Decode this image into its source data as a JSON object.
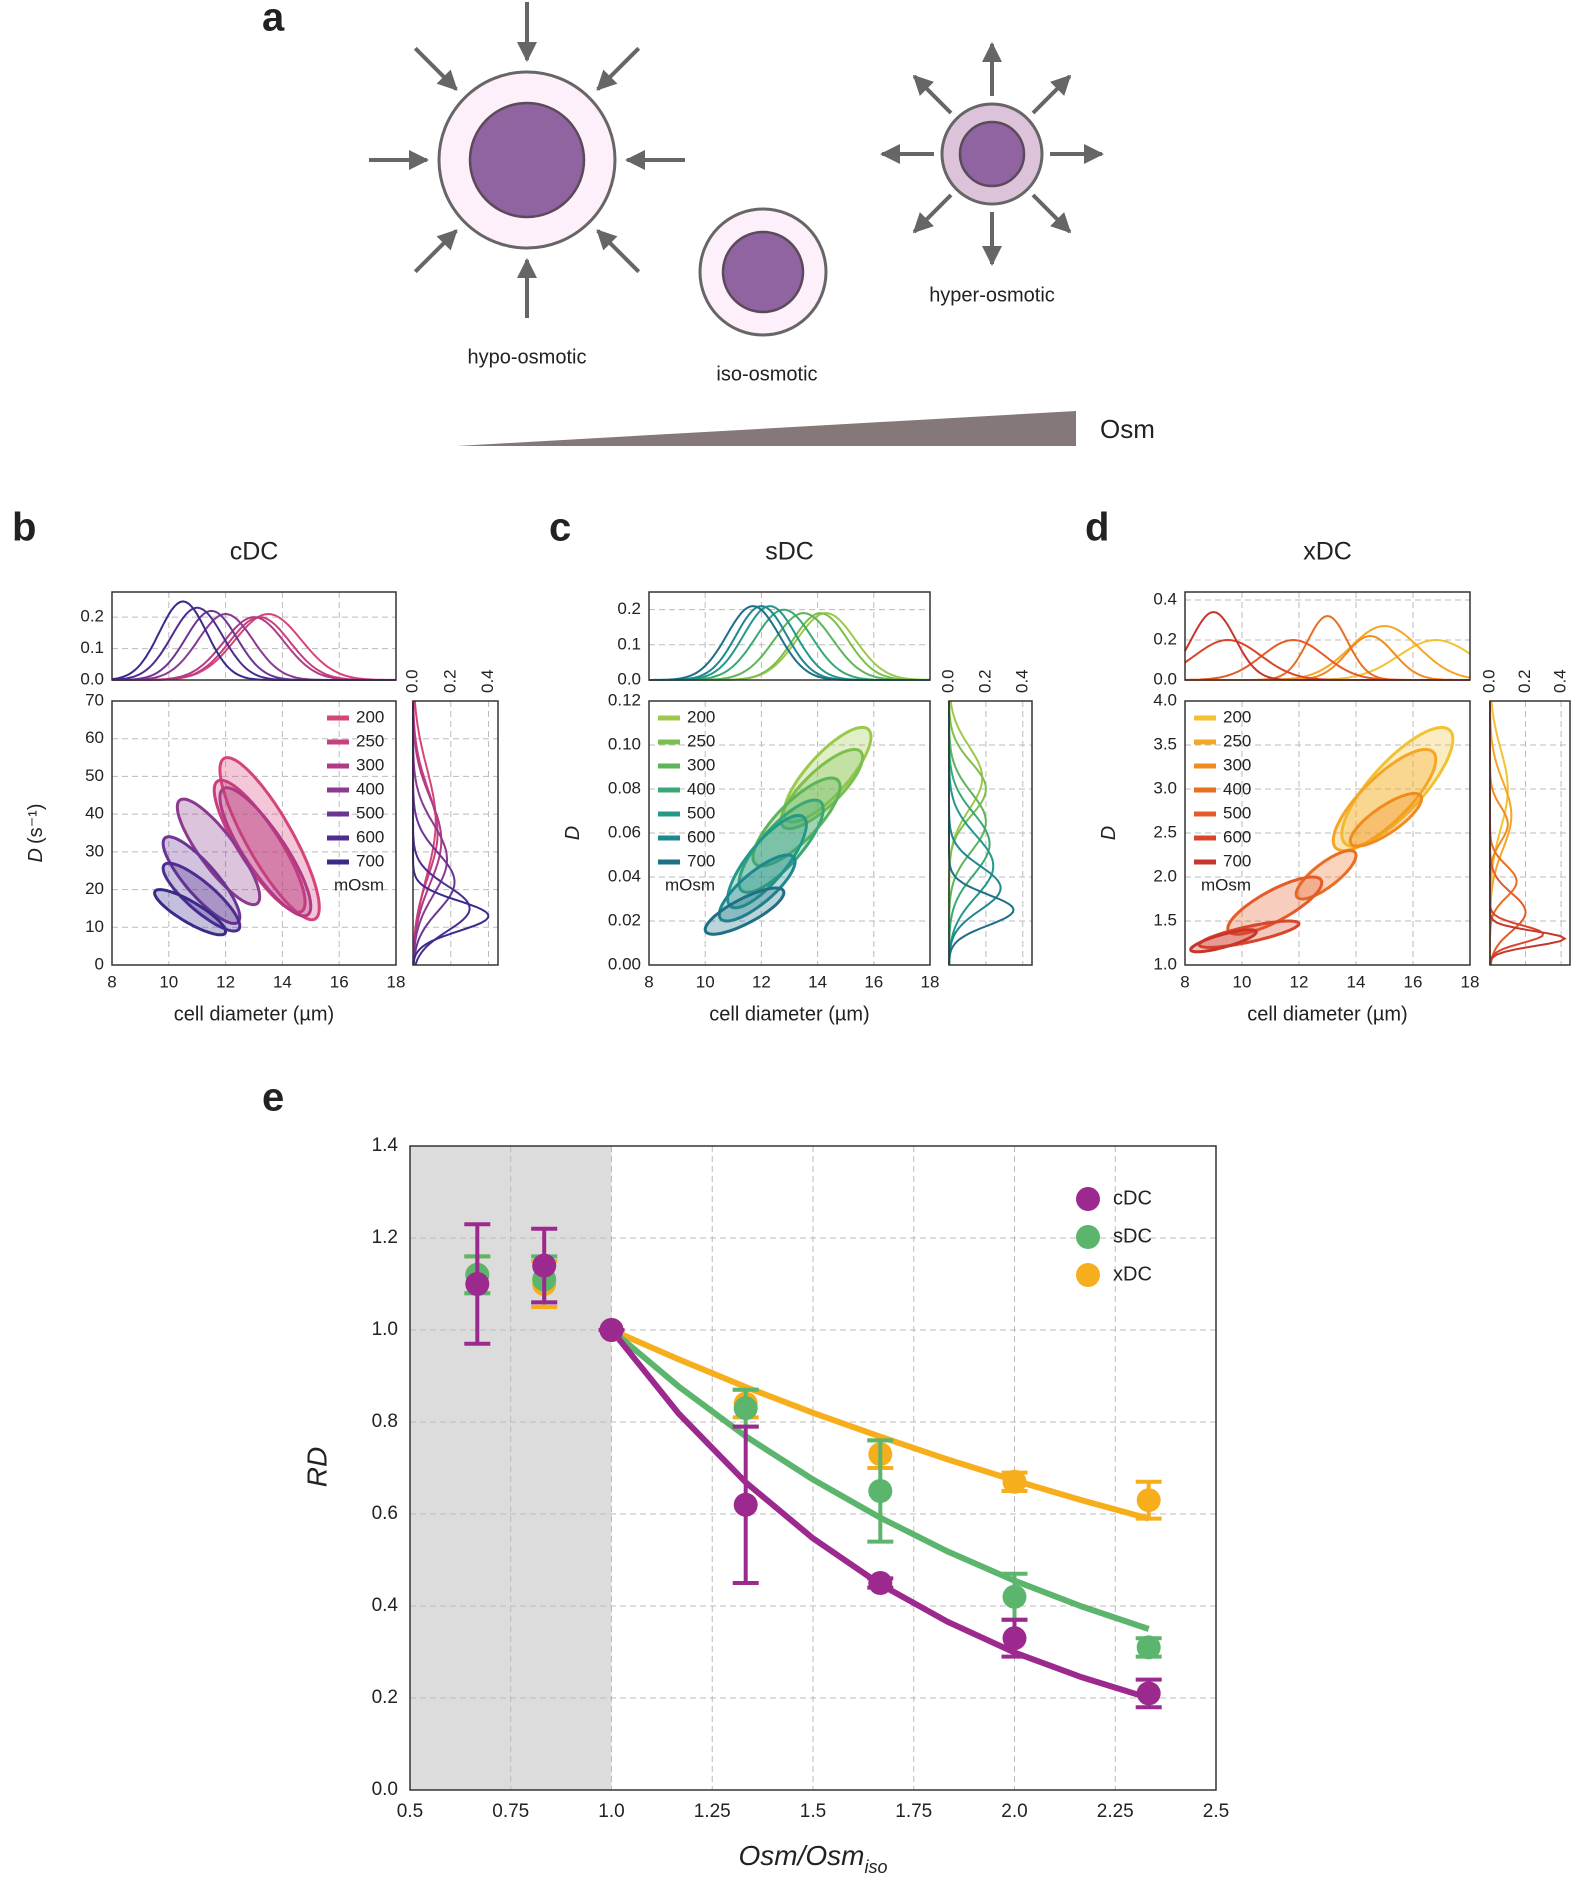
{
  "panel_a": {
    "label": "a",
    "cells": [
      "hypo-osmotic",
      "iso-osmotic",
      "hyper-osmotic"
    ],
    "gradient_label": "Osm"
  },
  "chart_data": [
    {
      "type": "contour",
      "panel_label": "b",
      "title": "cDC",
      "xlabel": "cell diameter (µm)",
      "ylabel": "D",
      "ylabel_unit": "(s⁻¹)",
      "legend_title": "mOsm",
      "legend": "upper right",
      "xlim": [
        8,
        18
      ],
      "xticks": [
        8,
        10,
        12,
        14,
        16,
        18
      ],
      "ylim": [
        0,
        70
      ],
      "yticks": [
        0,
        10,
        20,
        30,
        40,
        50,
        60,
        70
      ],
      "top_ylim": [
        0,
        0.28
      ],
      "top_yticks": [
        {
          "value": 0,
          "label": "0.0"
        },
        0.1,
        0.2
      ],
      "right_xlim": [
        0,
        0.45
      ],
      "right_xticks": [
        {
          "value": 0,
          "label": "0.0"
        },
        0.2,
        0.4
      ],
      "grid": true,
      "correlation": -0.85,
      "series": [
        {
          "name": "200",
          "color": "#d6447a",
          "x_range": [
            11.8,
            15.3
          ],
          "y_range": [
            12,
            55
          ],
          "x_density": [
            13.5,
            0.21
          ],
          "y_density": [
            38,
            0.12
          ]
        },
        {
          "name": "250",
          "color": "#c93e7d",
          "x_range": [
            11.6,
            14.8
          ],
          "y_range": [
            14,
            49
          ],
          "x_density": [
            13.2,
            0.2
          ],
          "y_density": [
            35,
            0.13
          ]
        },
        {
          "name": "300",
          "color": "#b03a85",
          "x_range": [
            11.8,
            15
          ],
          "y_range": [
            13,
            47
          ],
          "x_density": [
            13,
            0.2
          ],
          "y_density": [
            33,
            0.15
          ]
        },
        {
          "name": "400",
          "color": "#8a3a8f",
          "x_range": [
            10.3,
            13.2
          ],
          "y_range": [
            16,
            44
          ],
          "x_density": [
            12,
            0.21
          ],
          "y_density": [
            28,
            0.18
          ]
        },
        {
          "name": "500",
          "color": "#6a3594",
          "x_range": [
            9.8,
            12.5
          ],
          "y_range": [
            11,
            34
          ],
          "x_density": [
            11.5,
            0.22
          ],
          "y_density": [
            22,
            0.22
          ]
        },
        {
          "name": "600",
          "color": "#4d2d8f",
          "x_range": [
            9.8,
            12.5
          ],
          "y_range": [
            9,
            27
          ],
          "x_density": [
            11,
            0.23
          ],
          "y_density": [
            15,
            0.3
          ]
        },
        {
          "name": "700",
          "color": "#3a2a8a",
          "x_range": [
            9.5,
            12
          ],
          "y_range": [
            8,
            20
          ],
          "x_density": [
            10.5,
            0.25
          ],
          "y_density": [
            13,
            0.4
          ]
        }
      ]
    },
    {
      "type": "contour",
      "panel_label": "c",
      "title": "sDC",
      "xlabel": "cell diameter (µm)",
      "ylabel": "D",
      "legend_title": "mOsm",
      "legend": "upper left",
      "xlim": [
        8,
        18
      ],
      "xticks": [
        8,
        10,
        12,
        14,
        16,
        18
      ],
      "ylim": [
        0,
        0.12
      ],
      "yticks": [
        {
          "value": 0,
          "label": "0.00"
        },
        0.02,
        0.04,
        0.06,
        0.08,
        {
          "value": 0.1,
          "label": "0.10"
        },
        0.12
      ],
      "top_ylim": [
        0,
        0.25
      ],
      "top_yticks": [
        {
          "value": 0,
          "label": "0.0"
        },
        0.1,
        0.2
      ],
      "right_xlim": [
        0,
        0.45
      ],
      "right_xticks": [
        {
          "value": 0,
          "label": "0.0"
        },
        0.2,
        0.4
      ],
      "grid": true,
      "correlation": 0.8,
      "series": [
        {
          "name": "200",
          "color": "#9cc94a",
          "x_range": [
            12.8,
            15.9
          ],
          "y_range": [
            0.065,
            0.108
          ],
          "x_density": [
            14.3,
            0.19
          ],
          "y_density": [
            0.085,
            0.18
          ]
        },
        {
          "name": "250",
          "color": "#7cbf4e",
          "x_range": [
            12.7,
            15.6
          ],
          "y_range": [
            0.062,
            0.098
          ],
          "x_density": [
            14.1,
            0.19
          ],
          "y_density": [
            0.08,
            0.2
          ]
        },
        {
          "name": "300",
          "color": "#5db45b",
          "x_range": [
            11.7,
            14.8
          ],
          "y_range": [
            0.045,
            0.085
          ],
          "x_density": [
            13.5,
            0.19
          ],
          "y_density": [
            0.065,
            0.2
          ]
        },
        {
          "name": "400",
          "color": "#3aa874",
          "x_range": [
            11.2,
            14.2
          ],
          "y_range": [
            0.033,
            0.075
          ],
          "x_density": [
            12.8,
            0.2
          ],
          "y_density": [
            0.055,
            0.22
          ]
        },
        {
          "name": "500",
          "color": "#23998a",
          "x_range": [
            10.8,
            13.6
          ],
          "y_range": [
            0.026,
            0.068
          ],
          "x_density": [
            12.3,
            0.21
          ],
          "y_density": [
            0.045,
            0.24
          ]
        },
        {
          "name": "600",
          "color": "#1f8790",
          "x_range": [
            10.5,
            13.2
          ],
          "y_range": [
            0.02,
            0.05
          ],
          "x_density": [
            12,
            0.21
          ],
          "y_density": [
            0.035,
            0.28
          ]
        },
        {
          "name": "700",
          "color": "#1f6f85",
          "x_range": [
            10,
            12.8
          ],
          "y_range": [
            0.014,
            0.035
          ],
          "x_density": [
            11.7,
            0.21
          ],
          "y_density": [
            0.025,
            0.35
          ]
        }
      ]
    },
    {
      "type": "contour",
      "panel_label": "d",
      "title": "xDC",
      "xlabel": "cell diameter (µm)",
      "ylabel": "D",
      "legend_title": "mOsm",
      "legend": "upper left",
      "xlim": [
        8,
        18
      ],
      "xticks": [
        8,
        10,
        12,
        14,
        16,
        18
      ],
      "ylim": [
        1,
        4
      ],
      "yticks": [
        {
          "value": 1,
          "label": "1.0"
        },
        1.5,
        {
          "value": 2,
          "label": "2.0"
        },
        2.5,
        {
          "value": 3,
          "label": "3.0"
        },
        3.5,
        {
          "value": 4,
          "label": "4.0"
        }
      ],
      "top_ylim": [
        0,
        0.44
      ],
      "top_yticks": [
        {
          "value": 0,
          "label": "0.0"
        },
        0.2,
        0.4
      ],
      "right_xlim": [
        0,
        0.45
      ],
      "right_xticks": [
        {
          "value": 0,
          "label": "0.0"
        },
        0.2,
        0.4
      ],
      "grid": true,
      "correlation": 0.8,
      "series": [
        {
          "name": "200",
          "color": "#f2c233",
          "x_range": [
            13.5,
            17.4
          ],
          "y_range": [
            2.35,
            3.7
          ],
          "x_density": [
            16.8,
            0.2
          ],
          "y_density": [
            3,
            0.1
          ]
        },
        {
          "name": "250",
          "color": "#f5a623",
          "x_range": [
            13.2,
            16.8
          ],
          "y_range": [
            2.3,
            3.45
          ],
          "x_density": [
            15,
            0.27
          ],
          "y_density": [
            2.7,
            0.12
          ]
        },
        {
          "name": "300",
          "color": "#f08c1e",
          "x_range": [
            13.8,
            16.3
          ],
          "y_range": [
            2.35,
            2.95
          ],
          "x_density": [
            14.5,
            0.22
          ],
          "y_density": [
            2.6,
            0.1
          ]
        },
        {
          "name": "400",
          "color": "#ea6e21",
          "x_range": [
            11.9,
            14
          ],
          "y_range": [
            1.75,
            2.3
          ],
          "x_density": [
            13,
            0.32
          ],
          "y_density": [
            1.95,
            0.15
          ]
        },
        {
          "name": "500",
          "color": "#e55a27",
          "x_range": [
            9.5,
            12.8
          ],
          "y_range": [
            1.35,
            2
          ],
          "x_density": [
            11.8,
            0.2
          ],
          "y_density": [
            1.6,
            0.2
          ]
        },
        {
          "name": "600",
          "color": "#d9452a",
          "x_range": [
            8.5,
            12
          ],
          "y_range": [
            1.2,
            1.5
          ],
          "x_density": [
            9.5,
            0.2
          ],
          "y_density": [
            1.35,
            0.3
          ]
        },
        {
          "name": "700",
          "color": "#c8352b",
          "x_range": [
            8.2,
            10.5
          ],
          "y_range": [
            1.15,
            1.4
          ],
          "x_density": [
            9,
            0.34
          ],
          "y_density": [
            1.3,
            0.42
          ]
        }
      ]
    },
    {
      "type": "scatter",
      "panel_label": "e",
      "xlabel": "Osm/Osm",
      "xlabel_sub": "iso",
      "ylabel": "RD",
      "legend": "upper right",
      "grid": true,
      "shade": [
        0.5,
        1
      ],
      "x": [
        0.667,
        0.833,
        1,
        1.333,
        1.667,
        2,
        2.333
      ],
      "xlim": [
        0.5,
        2.5
      ],
      "xticks": [
        0.5,
        0.75,
        {
          "value": 1,
          "label": "1.0"
        },
        1.25,
        1.5,
        1.75,
        {
          "value": 2,
          "label": "2.0"
        },
        2.25,
        2.5
      ],
      "ylim": [
        0,
        1.4
      ],
      "yticks": [
        {
          "value": 0,
          "label": "0.0"
        },
        0.2,
        0.4,
        0.6,
        0.8,
        {
          "value": 1,
          "label": "1.0"
        },
        1.2,
        1.4
      ],
      "series": [
        {
          "name": "cDC",
          "color": "#9c2a8e",
          "values": [
            1.1,
            1.14,
            1,
            0.62,
            0.45,
            0.33,
            0.21
          ],
          "errors": [
            0.13,
            0.08,
            0,
            0.17,
            0.01,
            0.04,
            0.03
          ],
          "fit_x": [
            1,
            1.167,
            1.333,
            1.5,
            1.667,
            1.833,
            2,
            2.167,
            2.333
          ],
          "fit_y": [
            1,
            0.818,
            0.669,
            0.547,
            0.447,
            0.366,
            0.299,
            0.245,
            0.2
          ]
        },
        {
          "name": "sDC",
          "color": "#5cb56c",
          "values": [
            1.12,
            1.11,
            1,
            0.83,
            0.65,
            0.42,
            0.31
          ],
          "errors": [
            0.04,
            0.05,
            0,
            0.04,
            0.11,
            0.05,
            0.02
          ],
          "fit_x": [
            1,
            1.167,
            1.333,
            1.5,
            1.667,
            1.833,
            2,
            2.167,
            2.333
          ],
          "fit_y": [
            1,
            0.877,
            0.769,
            0.675,
            0.592,
            0.519,
            0.455,
            0.399,
            0.35
          ]
        },
        {
          "name": "xDC",
          "color": "#f7ae1d",
          "values": [
            1.12,
            1.1,
            1,
            0.84,
            0.73,
            0.67,
            0.63
          ],
          "errors": [
            0.04,
            0.05,
            0,
            0.03,
            0.03,
            0.02,
            0.04
          ],
          "fit_x": [
            1,
            1.167,
            1.333,
            1.5,
            1.667,
            1.833,
            2,
            2.167,
            2.333
          ],
          "fit_y": [
            1,
            0.936,
            0.876,
            0.82,
            0.768,
            0.719,
            0.673,
            0.63,
            0.59
          ]
        }
      ]
    }
  ]
}
